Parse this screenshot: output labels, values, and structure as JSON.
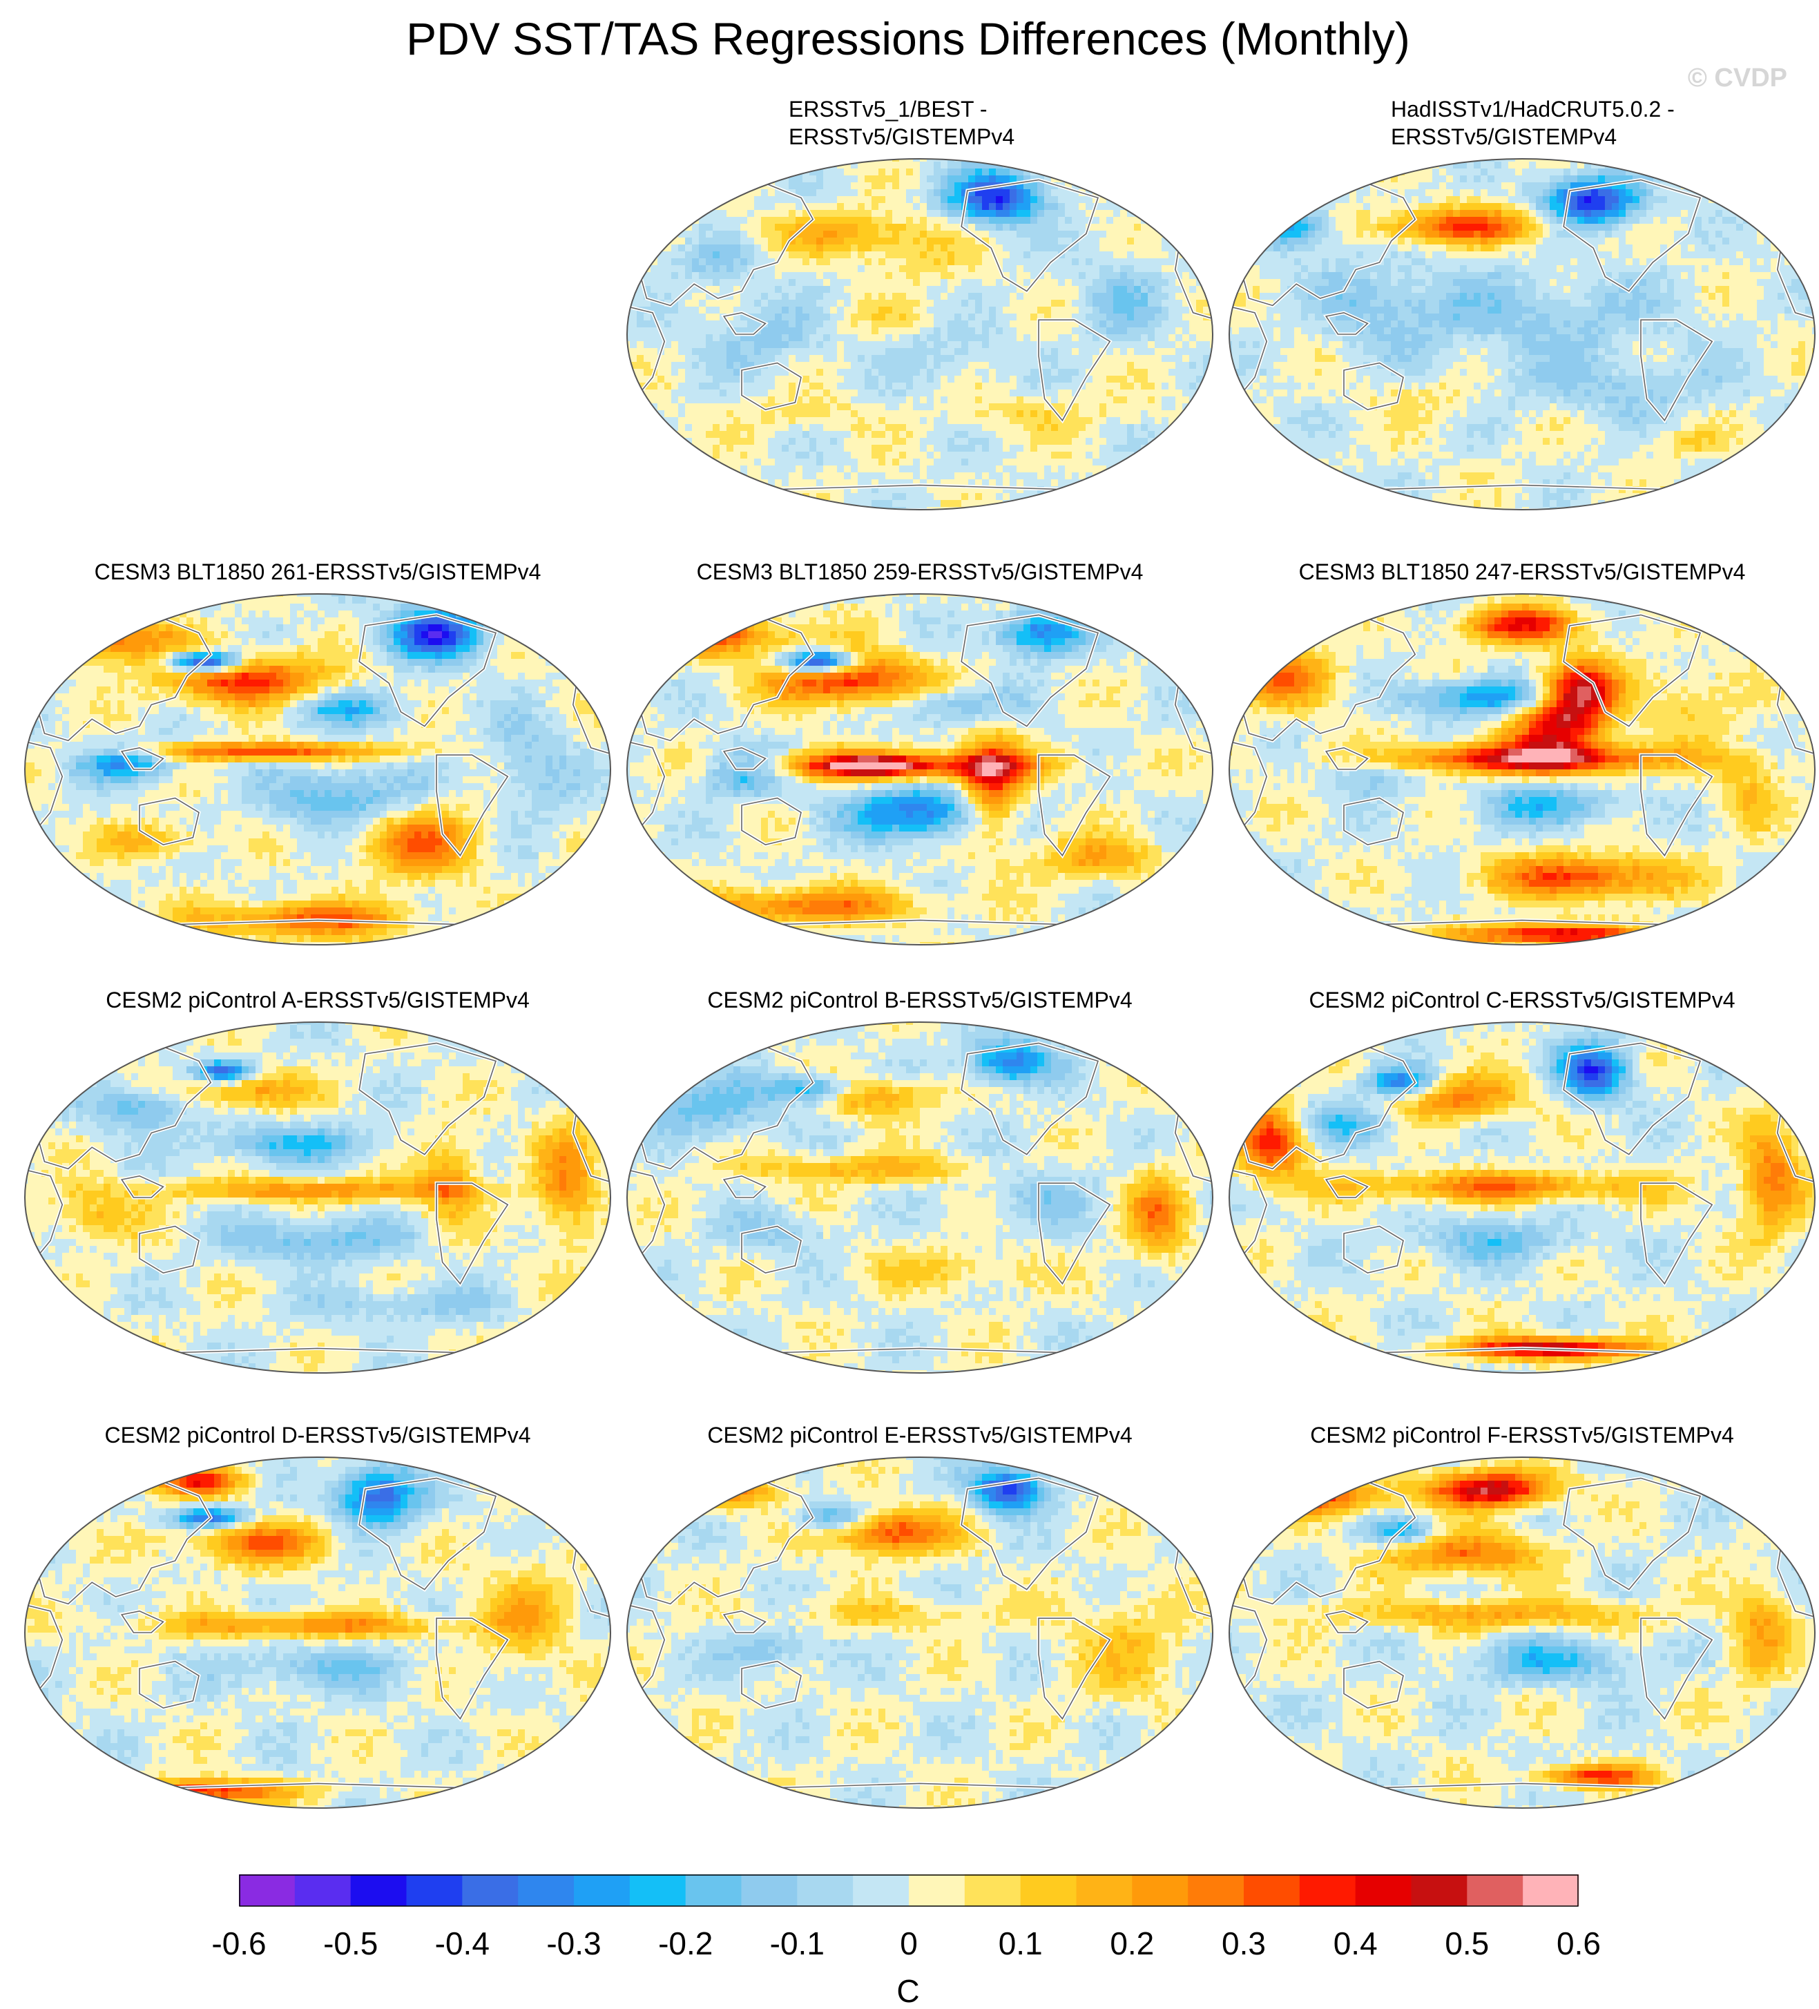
{
  "title": "PDV SST/TAS Regressions Differences (Monthly)",
  "watermark": "© CVDP",
  "panels": [
    {
      "title": "ERSSTv5_1/BEST -\nERSSTv5/GISTEMPv4",
      "pattern": "obs1",
      "row": 0,
      "col": 1
    },
    {
      "title": "HadISSTv1/HadCRUT5.0.2 -\nERSSTv5/GISTEMPv4",
      "pattern": "obs2",
      "row": 0,
      "col": 2
    },
    {
      "title": "CESM3 BLT1850 261-ERSSTv5/GISTEMPv4",
      "pattern": "strong_a",
      "row": 1,
      "col": 0
    },
    {
      "title": "CESM3 BLT1850 259-ERSSTv5/GISTEMPv4",
      "pattern": "strong_b",
      "row": 1,
      "col": 1
    },
    {
      "title": "CESM3 BLT1850 247-ERSSTv5/GISTEMPv4",
      "pattern": "strong_c",
      "row": 1,
      "col": 2
    },
    {
      "title": "CESM2 piControl A-ERSSTv5/GISTEMPv4",
      "pattern": "mod_a",
      "row": 2,
      "col": 0
    },
    {
      "title": "CESM2 piControl B-ERSSTv5/GISTEMPv4",
      "pattern": "mod_b",
      "row": 2,
      "col": 1
    },
    {
      "title": "CESM2 piControl C-ERSSTv5/GISTEMPv4",
      "pattern": "mod_c",
      "row": 2,
      "col": 2
    },
    {
      "title": "CESM2 piControl D-ERSSTv5/GISTEMPv4",
      "pattern": "mod_d",
      "row": 3,
      "col": 0
    },
    {
      "title": "CESM2 piControl E-ERSSTv5/GISTEMPv4",
      "pattern": "mod_e",
      "row": 3,
      "col": 1
    },
    {
      "title": "CESM2 piControl F-ERSSTv5/GISTEMPv4",
      "pattern": "mod_f",
      "row": 3,
      "col": 2
    }
  ],
  "colorbar": {
    "unit": "C",
    "labels": [
      "-0.6",
      "-0.5",
      "-0.4",
      "-0.3",
      "-0.2",
      "-0.1",
      "0",
      "0.1",
      "0.2",
      "0.3",
      "0.4",
      "0.5",
      "0.6"
    ],
    "colors": [
      "#8a2be2",
      "#5a2df0",
      "#1c0df0",
      "#1f3ff0",
      "#3a6ee6",
      "#2f86ee",
      "#1fa0f5",
      "#14bff7",
      "#69c4ee",
      "#8fcbee",
      "#a8d8f0",
      "#c4e6f4",
      "#fff6b8",
      "#ffe25a",
      "#ffcb1f",
      "#ffb316",
      "#ff9a0a",
      "#ff7c08",
      "#ff4d00",
      "#ff1a00",
      "#e60000",
      "#c71010",
      "#e06060",
      "#ffb3b8"
    ]
  }
}
